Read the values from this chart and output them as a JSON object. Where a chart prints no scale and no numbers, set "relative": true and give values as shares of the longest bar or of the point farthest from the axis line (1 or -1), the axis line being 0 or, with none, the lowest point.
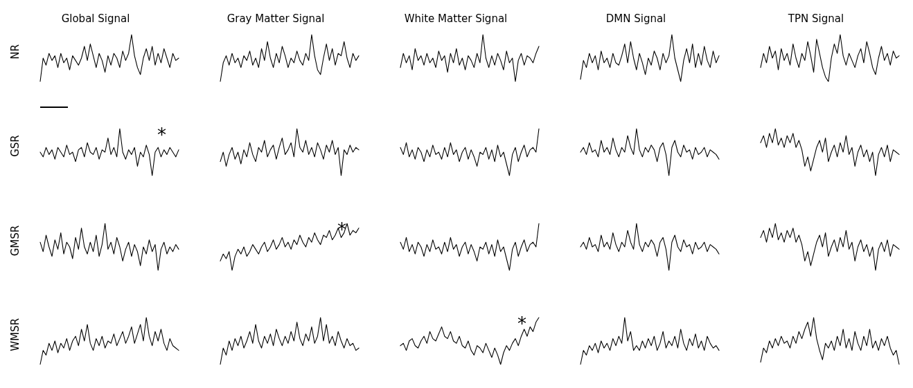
{
  "chart_data": [
    {
      "type": "line",
      "relative": true,
      "title": "Global Signal",
      "ylabel": "NR",
      "marker": "none",
      "tick_labels": false,
      "categories": [
        null,
        null,
        null,
        null,
        null,
        null,
        null,
        null,
        null,
        null,
        null,
        null,
        null,
        null,
        null,
        null,
        null,
        null,
        null,
        null,
        null,
        null,
        null,
        null,
        null,
        null,
        null,
        null,
        null,
        null,
        null,
        null,
        null,
        null,
        null,
        null,
        null,
        null,
        null,
        null,
        null,
        null,
        null,
        null,
        null,
        null,
        null,
        null
      ],
      "series": [
        {
          "color": "#000000",
          "values": [
            0,
            0.5,
            0.35,
            0.6,
            0.45,
            0.55,
            0.3,
            0.6,
            0.4,
            0.5,
            0.25,
            0.55,
            0.45,
            0.35,
            0.5,
            0.75,
            0.45,
            0.8,
            0.55,
            0.3,
            0.6,
            0.45,
            0.2,
            0.55,
            0.35,
            0.6,
            0.5,
            0.3,
            0.65,
            0.45,
            0.6,
            1,
            0.55,
            0.3,
            0.15,
            0.5,
            0.7,
            0.45,
            0.75,
            0.35,
            0.6,
            0.4,
            0.7,
            0.5,
            0.3,
            0.6,
            0.45,
            0.5
          ]
        }
      ]
    },
    {
      "type": "line",
      "relative": true,
      "title": "Gray Matter Signal",
      "marker": "none",
      "tick_labels": false,
      "categories": [
        null,
        null,
        null,
        null,
        null,
        null,
        null,
        null,
        null,
        null,
        null,
        null,
        null,
        null,
        null,
        null,
        null,
        null,
        null,
        null,
        null,
        null,
        null,
        null,
        null,
        null,
        null,
        null,
        null,
        null,
        null,
        null,
        null,
        null,
        null,
        null,
        null,
        null,
        null,
        null,
        null,
        null,
        null,
        null,
        null,
        null,
        null,
        null
      ],
      "series": [
        {
          "color": "#000000",
          "values": [
            0,
            0.4,
            0.55,
            0.35,
            0.6,
            0.4,
            0.5,
            0.3,
            0.55,
            0.45,
            0.65,
            0.35,
            0.5,
            0.3,
            0.7,
            0.45,
            0.85,
            0.5,
            0.3,
            0.6,
            0.4,
            0.75,
            0.55,
            0.3,
            0.5,
            0.4,
            0.65,
            0.45,
            0.35,
            0.6,
            0.45,
            1,
            0.55,
            0.25,
            0.15,
            0.5,
            0.8,
            0.45,
            0.7,
            0.35,
            0.6,
            0.55,
            0.85,
            0.5,
            0.3,
            0.6,
            0.45,
            0.55
          ]
        }
      ]
    },
    {
      "type": "line",
      "relative": true,
      "title": "White Matter Signal",
      "marker": "none",
      "tick_labels": false,
      "categories": [
        null,
        null,
        null,
        null,
        null,
        null,
        null,
        null,
        null,
        null,
        null,
        null,
        null,
        null,
        null,
        null,
        null,
        null,
        null,
        null,
        null,
        null,
        null,
        null,
        null,
        null,
        null,
        null,
        null,
        null,
        null,
        null,
        null,
        null,
        null,
        null,
        null,
        null,
        null,
        null,
        null,
        null,
        null,
        null,
        null,
        null,
        null,
        null
      ],
      "series": [
        {
          "color": "#000000",
          "values": [
            0.3,
            0.6,
            0.4,
            0.55,
            0.25,
            0.7,
            0.45,
            0.55,
            0.35,
            0.6,
            0.4,
            0.5,
            0.3,
            0.65,
            0.45,
            0.55,
            0.2,
            0.6,
            0.4,
            0.7,
            0.35,
            0.5,
            0.25,
            0.55,
            0.45,
            0.3,
            0.6,
            0.4,
            1,
            0.5,
            0.3,
            0.55,
            0.35,
            0.6,
            0.45,
            0.25,
            0.65,
            0.4,
            0.5,
            0,
            0.45,
            0.6,
            0.35,
            0.55,
            0.5,
            0.4,
            0.6,
            0.75
          ]
        }
      ]
    },
    {
      "type": "line",
      "relative": true,
      "title": "DMN Signal",
      "marker": "none",
      "tick_labels": false,
      "categories": [
        null,
        null,
        null,
        null,
        null,
        null,
        null,
        null,
        null,
        null,
        null,
        null,
        null,
        null,
        null,
        null,
        null,
        null,
        null,
        null,
        null,
        null,
        null,
        null,
        null,
        null,
        null,
        null,
        null,
        null,
        null,
        null,
        null,
        null,
        null,
        null,
        null,
        null,
        null,
        null,
        null,
        null,
        null,
        null,
        null,
        null,
        null,
        null
      ],
      "series": [
        {
          "color": "#000000",
          "values": [
            0.05,
            0.45,
            0.3,
            0.6,
            0.4,
            0.55,
            0.25,
            0.65,
            0.4,
            0.5,
            0.3,
            0.6,
            0.4,
            0.35,
            0.55,
            0.8,
            0.4,
            0.85,
            0.5,
            0.25,
            0.6,
            0.4,
            0.15,
            0.5,
            0.35,
            0.65,
            0.5,
            0.25,
            0.6,
            0.4,
            0.55,
            1,
            0.5,
            0.25,
            0,
            0.45,
            0.7,
            0.4,
            0.8,
            0.3,
            0.6,
            0.35,
            0.75,
            0.45,
            0.3,
            0.65,
            0.4,
            0.55
          ]
        }
      ]
    },
    {
      "type": "line",
      "relative": true,
      "title": "TPN Signal",
      "marker": "none",
      "tick_labels": false,
      "categories": [
        null,
        null,
        null,
        null,
        null,
        null,
        null,
        null,
        null,
        null,
        null,
        null,
        null,
        null,
        null,
        null,
        null,
        null,
        null,
        null,
        null,
        null,
        null,
        null,
        null,
        null,
        null,
        null,
        null,
        null,
        null,
        null,
        null,
        null,
        null,
        null,
        null,
        null,
        null,
        null,
        null,
        null,
        null,
        null,
        null,
        null,
        null,
        null
      ],
      "series": [
        {
          "color": "#000000",
          "values": [
            0.3,
            0.6,
            0.4,
            0.75,
            0.5,
            0.65,
            0.25,
            0.7,
            0.45,
            0.6,
            0.35,
            0.8,
            0.5,
            0.3,
            0.6,
            0.45,
            0.85,
            0.55,
            0.2,
            0.9,
            0.6,
            0.3,
            0.1,
            0,
            0.5,
            0.8,
            0.6,
            1,
            0.55,
            0.35,
            0.6,
            0.45,
            0.3,
            0.55,
            0.7,
            0.4,
            0.85,
            0.6,
            0.3,
            0.15,
            0.5,
            0.75,
            0.45,
            0.6,
            0.35,
            0.65,
            0.5,
            0.55
          ]
        }
      ]
    },
    {
      "type": "line",
      "relative": true,
      "ylabel": "GSR",
      "annotations": [
        "*"
      ],
      "marker": "none",
      "tick_labels": false,
      "categories": [
        null,
        null,
        null,
        null,
        null,
        null,
        null,
        null,
        null,
        null,
        null,
        null,
        null,
        null,
        null,
        null,
        null,
        null,
        null,
        null,
        null,
        null,
        null,
        null,
        null,
        null,
        null,
        null,
        null,
        null,
        null,
        null,
        null,
        null,
        null,
        null,
        null,
        null,
        null,
        null,
        null,
        null,
        null,
        null,
        null,
        null,
        null,
        null
      ],
      "series": [
        {
          "color": "#000000",
          "values": [
            0.5,
            0.4,
            0.6,
            0.45,
            0.55,
            0.35,
            0.6,
            0.5,
            0.4,
            0.65,
            0.45,
            0.5,
            0.3,
            0.55,
            0.6,
            0.4,
            0.7,
            0.5,
            0.45,
            0.6,
            0.35,
            0.55,
            0.5,
            0.8,
            0.45,
            0.6,
            0.4,
            1,
            0.5,
            0.35,
            0.55,
            0.45,
            0.6,
            0.2,
            0.5,
            0.4,
            0.65,
            0.45,
            0,
            0.5,
            0.6,
            0.4,
            0.55,
            0.45,
            0.6,
            0.5,
            0.4,
            0.55
          ]
        }
      ]
    },
    {
      "type": "line",
      "relative": true,
      "marker": "none",
      "tick_labels": false,
      "categories": [
        null,
        null,
        null,
        null,
        null,
        null,
        null,
        null,
        null,
        null,
        null,
        null,
        null,
        null,
        null,
        null,
        null,
        null,
        null,
        null,
        null,
        null,
        null,
        null,
        null,
        null,
        null,
        null,
        null,
        null,
        null,
        null,
        null,
        null,
        null,
        null,
        null,
        null,
        null,
        null,
        null,
        null,
        null,
        null,
        null,
        null,
        null,
        null
      ],
      "series": [
        {
          "color": "#000000",
          "values": [
            0.3,
            0.5,
            0.2,
            0.45,
            0.6,
            0.35,
            0.5,
            0.25,
            0.55,
            0.4,
            0.7,
            0.45,
            0.3,
            0.6,
            0.5,
            0.75,
            0.4,
            0.55,
            0.65,
            0.35,
            0.6,
            0.8,
            0.45,
            0.55,
            0.7,
            0.4,
            1,
            0.6,
            0.5,
            0.75,
            0.45,
            0.6,
            0.4,
            0.7,
            0.55,
            0.35,
            0.65,
            0.5,
            0.75,
            0.45,
            0.6,
            0,
            0.55,
            0.45,
            0.65,
            0.5,
            0.6,
            0.55
          ]
        }
      ]
    },
    {
      "type": "line",
      "relative": true,
      "marker": "none",
      "tick_labels": false,
      "categories": [
        null,
        null,
        null,
        null,
        null,
        null,
        null,
        null,
        null,
        null,
        null,
        null,
        null,
        null,
        null,
        null,
        null,
        null,
        null,
        null,
        null,
        null,
        null,
        null,
        null,
        null,
        null,
        null,
        null,
        null,
        null,
        null,
        null,
        null,
        null,
        null,
        null,
        null,
        null,
        null,
        null,
        null,
        null,
        null,
        null,
        null,
        null,
        null
      ],
      "series": [
        {
          "color": "#000000",
          "values": [
            0.6,
            0.45,
            0.7,
            0.4,
            0.55,
            0.35,
            0.6,
            0.5,
            0.3,
            0.55,
            0.4,
            0.65,
            0.45,
            0.5,
            0.35,
            0.6,
            0.4,
            0.7,
            0.45,
            0.55,
            0.3,
            0.5,
            0.6,
            0.35,
            0.55,
            0.4,
            0.2,
            0.5,
            0.45,
            0.6,
            0.35,
            0.55,
            0.3,
            0.65,
            0.4,
            0.5,
            0.25,
            0,
            0.45,
            0.6,
            0.3,
            0.5,
            0.65,
            0.4,
            0.55,
            0.6,
            0.5,
            1
          ]
        }
      ]
    },
    {
      "type": "line",
      "relative": true,
      "marker": "none",
      "tick_labels": false,
      "categories": [
        null,
        null,
        null,
        null,
        null,
        null,
        null,
        null,
        null,
        null,
        null,
        null,
        null,
        null,
        null,
        null,
        null,
        null,
        null,
        null,
        null,
        null,
        null,
        null,
        null,
        null,
        null,
        null,
        null,
        null,
        null,
        null,
        null,
        null,
        null,
        null,
        null,
        null,
        null,
        null,
        null,
        null,
        null,
        null,
        null,
        null,
        null,
        null
      ],
      "series": [
        {
          "color": "#000000",
          "values": [
            0.5,
            0.6,
            0.45,
            0.7,
            0.5,
            0.55,
            0.4,
            0.75,
            0.5,
            0.6,
            0.45,
            0.8,
            0.55,
            0.4,
            0.6,
            0.5,
            0.85,
            0.6,
            0.45,
            1,
            0.55,
            0.4,
            0.6,
            0.5,
            0.65,
            0.55,
            0.3,
            0.6,
            0.7,
            0.45,
            0,
            0.6,
            0.75,
            0.5,
            0.4,
            0.65,
            0.5,
            0.55,
            0.35,
            0.6,
            0.45,
            0.5,
            0.6,
            0.4,
            0.55,
            0.5,
            0.45,
            0.35
          ]
        }
      ]
    },
    {
      "type": "line",
      "relative": true,
      "marker": "none",
      "tick_labels": false,
      "categories": [
        null,
        null,
        null,
        null,
        null,
        null,
        null,
        null,
        null,
        null,
        null,
        null,
        null,
        null,
        null,
        null,
        null,
        null,
        null,
        null,
        null,
        null,
        null,
        null,
        null,
        null,
        null,
        null,
        null,
        null,
        null,
        null,
        null,
        null,
        null,
        null,
        null,
        null,
        null,
        null,
        null,
        null,
        null,
        null,
        null,
        null,
        null,
        null
      ],
      "series": [
        {
          "color": "#000000",
          "values": [
            0.7,
            0.85,
            0.6,
            0.9,
            0.7,
            1,
            0.65,
            0.8,
            0.6,
            0.85,
            0.7,
            0.9,
            0.6,
            0.75,
            0.55,
            0.2,
            0.4,
            0.1,
            0.35,
            0.6,
            0.75,
            0.5,
            0.8,
            0.3,
            0.5,
            0.65,
            0.4,
            0.7,
            0.5,
            0.85,
            0.45,
            0.6,
            0.2,
            0.5,
            0.65,
            0.4,
            0.55,
            0.3,
            0.5,
            0,
            0.45,
            0.6,
            0.4,
            0.65,
            0.3,
            0.55,
            0.5,
            0.45
          ]
        }
      ]
    },
    {
      "type": "line",
      "relative": true,
      "ylabel": "GMSR",
      "marker": "none",
      "tick_labels": false,
      "categories": [
        null,
        null,
        null,
        null,
        null,
        null,
        null,
        null,
        null,
        null,
        null,
        null,
        null,
        null,
        null,
        null,
        null,
        null,
        null,
        null,
        null,
        null,
        null,
        null,
        null,
        null,
        null,
        null,
        null,
        null,
        null,
        null,
        null,
        null,
        null,
        null,
        null,
        null,
        null,
        null,
        null,
        null,
        null,
        null,
        null,
        null,
        null,
        null
      ],
      "series": [
        {
          "color": "#000000",
          "values": [
            0.6,
            0.4,
            0.75,
            0.5,
            0.3,
            0.65,
            0.45,
            0.8,
            0.35,
            0.6,
            0.5,
            0.25,
            0.7,
            0.45,
            0.9,
            0.5,
            0.35,
            0.6,
            0.4,
            0.75,
            0.3,
            0.55,
            1,
            0.45,
            0.6,
            0.35,
            0.7,
            0.5,
            0.2,
            0.45,
            0.6,
            0.3,
            0.55,
            0.4,
            0.1,
            0.5,
            0.35,
            0.65,
            0.4,
            0.55,
            0,
            0.45,
            0.6,
            0.35,
            0.5,
            0.4,
            0.55,
            0.45
          ]
        }
      ]
    },
    {
      "type": "line",
      "relative": true,
      "annotations": [
        "*"
      ],
      "marker": "none",
      "tick_labels": false,
      "categories": [
        null,
        null,
        null,
        null,
        null,
        null,
        null,
        null,
        null,
        null,
        null,
        null,
        null,
        null,
        null,
        null,
        null,
        null,
        null,
        null,
        null,
        null,
        null,
        null,
        null,
        null,
        null,
        null,
        null,
        null,
        null,
        null,
        null,
        null,
        null,
        null,
        null,
        null,
        null,
        null,
        null,
        null,
        null,
        null,
        null,
        null,
        null,
        null
      ],
      "series": [
        {
          "color": "#000000",
          "values": [
            0.2,
            0.35,
            0.25,
            0.4,
            0,
            0.3,
            0.45,
            0.35,
            0.5,
            0.3,
            0.4,
            0.55,
            0.45,
            0.35,
            0.5,
            0.6,
            0.4,
            0.5,
            0.65,
            0.45,
            0.55,
            0.7,
            0.5,
            0.6,
            0.45,
            0.65,
            0.55,
            0.75,
            0.6,
            0.5,
            0.7,
            0.6,
            0.8,
            0.65,
            0.55,
            0.75,
            0.7,
            0.85,
            0.65,
            0.75,
            0.9,
            0.7,
            0.8,
            1,
            0.75,
            0.85,
            0.8,
            0.9
          ]
        }
      ]
    },
    {
      "type": "line",
      "relative": true,
      "marker": "none",
      "tick_labels": false,
      "categories": [
        null,
        null,
        null,
        null,
        null,
        null,
        null,
        null,
        null,
        null,
        null,
        null,
        null,
        null,
        null,
        null,
        null,
        null,
        null,
        null,
        null,
        null,
        null,
        null,
        null,
        null,
        null,
        null,
        null,
        null,
        null,
        null,
        null,
        null,
        null,
        null,
        null,
        null,
        null,
        null,
        null,
        null,
        null,
        null,
        null,
        null,
        null,
        null
      ],
      "series": [
        {
          "color": "#000000",
          "values": [
            0.6,
            0.45,
            0.7,
            0.4,
            0.55,
            0.35,
            0.6,
            0.5,
            0.3,
            0.55,
            0.4,
            0.65,
            0.45,
            0.5,
            0.35,
            0.6,
            0.4,
            0.7,
            0.45,
            0.55,
            0.3,
            0.5,
            0.6,
            0.35,
            0.55,
            0.4,
            0.2,
            0.5,
            0.45,
            0.6,
            0.35,
            0.55,
            0.3,
            0.65,
            0.4,
            0.5,
            0.25,
            0,
            0.45,
            0.6,
            0.3,
            0.5,
            0.65,
            0.4,
            0.55,
            0.6,
            0.5,
            1
          ]
        }
      ]
    },
    {
      "type": "line",
      "relative": true,
      "marker": "none",
      "tick_labels": false,
      "categories": [
        null,
        null,
        null,
        null,
        null,
        null,
        null,
        null,
        null,
        null,
        null,
        null,
        null,
        null,
        null,
        null,
        null,
        null,
        null,
        null,
        null,
        null,
        null,
        null,
        null,
        null,
        null,
        null,
        null,
        null,
        null,
        null,
        null,
        null,
        null,
        null,
        null,
        null,
        null,
        null,
        null,
        null,
        null,
        null,
        null,
        null,
        null,
        null
      ],
      "series": [
        {
          "color": "#000000",
          "values": [
            0.5,
            0.6,
            0.45,
            0.7,
            0.5,
            0.55,
            0.4,
            0.75,
            0.5,
            0.6,
            0.45,
            0.8,
            0.55,
            0.4,
            0.6,
            0.5,
            0.85,
            0.6,
            0.45,
            1,
            0.55,
            0.4,
            0.6,
            0.5,
            0.65,
            0.55,
            0.3,
            0.6,
            0.7,
            0.45,
            0,
            0.6,
            0.75,
            0.5,
            0.4,
            0.65,
            0.5,
            0.55,
            0.35,
            0.6,
            0.45,
            0.5,
            0.6,
            0.4,
            0.55,
            0.5,
            0.45,
            0.35
          ]
        }
      ]
    },
    {
      "type": "line",
      "relative": true,
      "marker": "none",
      "tick_labels": false,
      "categories": [
        null,
        null,
        null,
        null,
        null,
        null,
        null,
        null,
        null,
        null,
        null,
        null,
        null,
        null,
        null,
        null,
        null,
        null,
        null,
        null,
        null,
        null,
        null,
        null,
        null,
        null,
        null,
        null,
        null,
        null,
        null,
        null,
        null,
        null,
        null,
        null,
        null,
        null,
        null,
        null,
        null,
        null,
        null,
        null,
        null,
        null,
        null,
        null
      ],
      "series": [
        {
          "color": "#000000",
          "values": [
            0.7,
            0.85,
            0.6,
            0.9,
            0.7,
            1,
            0.65,
            0.8,
            0.6,
            0.85,
            0.7,
            0.9,
            0.6,
            0.75,
            0.55,
            0.2,
            0.4,
            0.1,
            0.35,
            0.6,
            0.75,
            0.5,
            0.8,
            0.3,
            0.5,
            0.65,
            0.4,
            0.7,
            0.5,
            0.85,
            0.45,
            0.6,
            0.2,
            0.5,
            0.65,
            0.4,
            0.55,
            0.3,
            0.5,
            0,
            0.45,
            0.6,
            0.4,
            0.65,
            0.3,
            0.55,
            0.5,
            0.45
          ]
        }
      ]
    },
    {
      "type": "line",
      "relative": true,
      "ylabel": "WMSR",
      "marker": "none",
      "tick_labels": false,
      "categories": [
        null,
        null,
        null,
        null,
        null,
        null,
        null,
        null,
        null,
        null,
        null,
        null,
        null,
        null,
        null,
        null,
        null,
        null,
        null,
        null,
        null,
        null,
        null,
        null,
        null,
        null,
        null,
        null,
        null,
        null,
        null,
        null,
        null,
        null,
        null,
        null,
        null,
        null,
        null,
        null,
        null,
        null,
        null,
        null,
        null,
        null,
        null,
        null
      ],
      "series": [
        {
          "color": "#000000",
          "values": [
            0,
            0.3,
            0.2,
            0.45,
            0.3,
            0.5,
            0.25,
            0.45,
            0.35,
            0.55,
            0.3,
            0.5,
            0.6,
            0.4,
            0.75,
            0.5,
            0.85,
            0.45,
            0.3,
            0.55,
            0.4,
            0.6,
            0.35,
            0.5,
            0.45,
            0.65,
            0.4,
            0.55,
            0.7,
            0.45,
            0.6,
            0.8,
            0.45,
            0.65,
            0.85,
            0.5,
            1,
            0.6,
            0.4,
            0.7,
            0.5,
            0.75,
            0.45,
            0.3,
            0.55,
            0.4,
            0.35,
            0.3
          ]
        }
      ]
    },
    {
      "type": "line",
      "relative": true,
      "marker": "none",
      "tick_labels": false,
      "categories": [
        null,
        null,
        null,
        null,
        null,
        null,
        null,
        null,
        null,
        null,
        null,
        null,
        null,
        null,
        null,
        null,
        null,
        null,
        null,
        null,
        null,
        null,
        null,
        null,
        null,
        null,
        null,
        null,
        null,
        null,
        null,
        null,
        null,
        null,
        null,
        null,
        null,
        null,
        null,
        null,
        null,
        null,
        null,
        null,
        null,
        null,
        null,
        null
      ],
      "series": [
        {
          "color": "#000000",
          "values": [
            0,
            0.35,
            0.2,
            0.5,
            0.3,
            0.55,
            0.4,
            0.6,
            0.35,
            0.5,
            0.7,
            0.45,
            0.85,
            0.5,
            0.35,
            0.6,
            0.45,
            0.65,
            0.4,
            0.75,
            0.55,
            0.4,
            0.6,
            0.45,
            0.7,
            0.5,
            0.9,
            0.55,
            0.4,
            0.65,
            0.5,
            0.8,
            0.45,
            0.6,
            1,
            0.5,
            0.85,
            0.45,
            0.6,
            0.4,
            0.7,
            0.5,
            0.35,
            0.55,
            0.4,
            0.45,
            0.3,
            0.35
          ]
        }
      ]
    },
    {
      "type": "line",
      "relative": true,
      "annotations": [
        "*"
      ],
      "marker": "none",
      "tick_labels": false,
      "categories": [
        null,
        null,
        null,
        null,
        null,
        null,
        null,
        null,
        null,
        null,
        null,
        null,
        null,
        null,
        null,
        null,
        null,
        null,
        null,
        null,
        null,
        null,
        null,
        null,
        null,
        null,
        null,
        null,
        null,
        null,
        null,
        null,
        null,
        null,
        null,
        null,
        null,
        null,
        null,
        null,
        null,
        null,
        null,
        null,
        null,
        null,
        null,
        null
      ],
      "series": [
        {
          "color": "#000000",
          "values": [
            0.4,
            0.45,
            0.3,
            0.5,
            0.55,
            0.4,
            0.35,
            0.5,
            0.6,
            0.45,
            0.7,
            0.55,
            0.5,
            0.65,
            0.8,
            0.6,
            0.55,
            0.7,
            0.5,
            0.45,
            0.6,
            0.4,
            0.35,
            0.5,
            0.3,
            0.2,
            0.4,
            0.35,
            0.25,
            0.45,
            0.3,
            0.15,
            0.35,
            0.2,
            0,
            0.25,
            0.4,
            0.3,
            0.45,
            0.55,
            0.4,
            0.6,
            0.75,
            0.6,
            0.8,
            0.7,
            0.9,
            1
          ]
        }
      ]
    },
    {
      "type": "line",
      "relative": true,
      "marker": "none",
      "tick_labels": false,
      "categories": [
        null,
        null,
        null,
        null,
        null,
        null,
        null,
        null,
        null,
        null,
        null,
        null,
        null,
        null,
        null,
        null,
        null,
        null,
        null,
        null,
        null,
        null,
        null,
        null,
        null,
        null,
        null,
        null,
        null,
        null,
        null,
        null,
        null,
        null,
        null,
        null,
        null,
        null,
        null,
        null,
        null,
        null,
        null,
        null,
        null,
        null,
        null,
        null
      ],
      "series": [
        {
          "color": "#000000",
          "values": [
            0,
            0.3,
            0.2,
            0.4,
            0.3,
            0.45,
            0.25,
            0.5,
            0.35,
            0.45,
            0.3,
            0.55,
            0.4,
            0.6,
            0.45,
            1,
            0.5,
            0.7,
            0.3,
            0.4,
            0.3,
            0.5,
            0.35,
            0.55,
            0.4,
            0.6,
            0.3,
            0.45,
            0.7,
            0.35,
            0.5,
            0.4,
            0.6,
            0.35,
            0.75,
            0.45,
            0.3,
            0.55,
            0.4,
            0.65,
            0.35,
            0.5,
            0.3,
            0.6,
            0.45,
            0.35,
            0.4,
            0.3
          ]
        }
      ]
    },
    {
      "type": "line",
      "relative": true,
      "marker": "none",
      "tick_labels": false,
      "categories": [
        null,
        null,
        null,
        null,
        null,
        null,
        null,
        null,
        null,
        null,
        null,
        null,
        null,
        null,
        null,
        null,
        null,
        null,
        null,
        null,
        null,
        null,
        null,
        null,
        null,
        null,
        null,
        null,
        null,
        null,
        null,
        null,
        null,
        null,
        null,
        null,
        null,
        null,
        null,
        null,
        null,
        null,
        null,
        null,
        null,
        null,
        null,
        null
      ],
      "series": [
        {
          "color": "#000000",
          "values": [
            0.05,
            0.35,
            0.25,
            0.5,
            0.35,
            0.55,
            0.4,
            0.6,
            0.45,
            0.5,
            0.35,
            0.6,
            0.45,
            0.7,
            0.55,
            0.75,
            0.9,
            0.6,
            1,
            0.55,
            0.3,
            0.1,
            0.45,
            0.35,
            0.5,
            0.3,
            0.6,
            0.4,
            0.75,
            0.35,
            0.55,
            0.3,
            0.7,
            0.45,
            0.3,
            0.6,
            0.4,
            0.75,
            0.35,
            0.5,
            0.3,
            0.55,
            0.4,
            0.6,
            0.35,
            0.2,
            0.3,
            0
          ]
        }
      ]
    }
  ]
}
